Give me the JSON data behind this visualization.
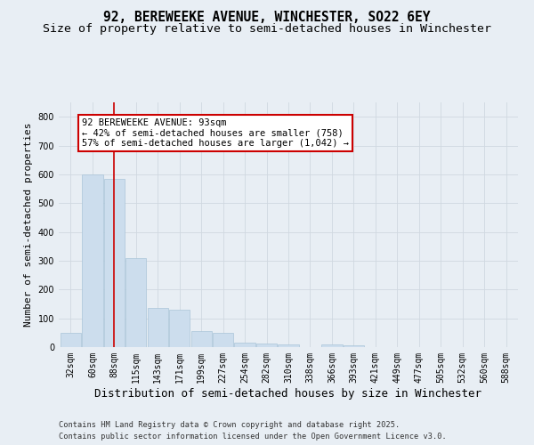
{
  "title": "92, BEREWEEKE AVENUE, WINCHESTER, SO22 6EY",
  "subtitle": "Size of property relative to semi-detached houses in Winchester",
  "xlabel": "Distribution of semi-detached houses by size in Winchester",
  "ylabel": "Number of semi-detached properties",
  "categories": [
    "32sqm",
    "60sqm",
    "88sqm",
    "115sqm",
    "143sqm",
    "171sqm",
    "199sqm",
    "227sqm",
    "254sqm",
    "282sqm",
    "310sqm",
    "338sqm",
    "366sqm",
    "393sqm",
    "421sqm",
    "449sqm",
    "477sqm",
    "505sqm",
    "532sqm",
    "560sqm",
    "588sqm"
  ],
  "values": [
    50,
    600,
    585,
    310,
    135,
    130,
    55,
    50,
    15,
    12,
    10,
    0,
    10,
    5,
    0,
    0,
    0,
    0,
    0,
    0,
    0
  ],
  "bar_color": "#ccdded",
  "bar_edge_color": "#aac5d8",
  "vline_x_index": 2,
  "annotation_title": "92 BEREWEEKE AVENUE: 93sqm",
  "annotation_line1": "← 42% of semi-detached houses are smaller (758)",
  "annotation_line2": "57% of semi-detached houses are larger (1,042) →",
  "annotation_box_facecolor": "#ffffff",
  "annotation_box_edgecolor": "#cc0000",
  "vline_color": "#cc0000",
  "grid_color": "#d0d8e0",
  "footer_line1": "Contains HM Land Registry data © Crown copyright and database right 2025.",
  "footer_line2": "Contains public sector information licensed under the Open Government Licence v3.0.",
  "ylim": [
    0,
    850
  ],
  "yticks": [
    0,
    100,
    200,
    300,
    400,
    500,
    600,
    700,
    800
  ],
  "bg_color": "#e8eef4",
  "title_fontsize": 10.5,
  "subtitle_fontsize": 9.5,
  "tick_fontsize": 7,
  "xlabel_fontsize": 9,
  "ylabel_fontsize": 8,
  "annotation_fontsize": 7.5
}
